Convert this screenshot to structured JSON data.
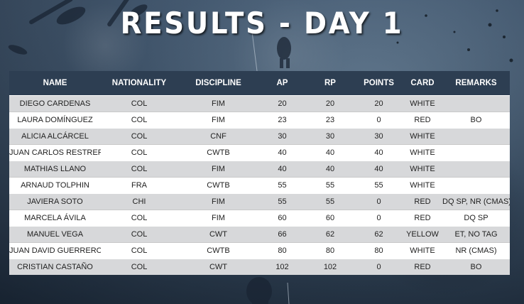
{
  "title": "RESULTS - DAY 1",
  "colors": {
    "header_bg": "#2d3e52",
    "row_odd": "#d7d8da",
    "row_even": "#ffffff"
  },
  "table": {
    "headers": [
      "NAME",
      "NATIONALITY",
      "DISCIPLINE",
      "AP",
      "RP",
      "POINTS",
      "CARD",
      "REMARKS"
    ],
    "rows": [
      [
        "DIEGO CARDENAS",
        "COL",
        "FIM",
        "20",
        "20",
        "20",
        "WHITE",
        ""
      ],
      [
        "LAURA DOMÍNGUEZ",
        "COL",
        "FIM",
        "23",
        "23",
        "0",
        "RED",
        "BO"
      ],
      [
        "ALICIA ALCÁRCEL",
        "COL",
        "CNF",
        "30",
        "30",
        "30",
        "WHITE",
        ""
      ],
      [
        "JUAN CARLOS RESTREPO",
        "COL",
        "CWTB",
        "40",
        "40",
        "40",
        "WHITE",
        ""
      ],
      [
        "MATHIAS LLANO",
        "COL",
        "FIM",
        "40",
        "40",
        "40",
        "WHITE",
        ""
      ],
      [
        "ARNAUD TOLPHIN",
        "FRA",
        "CWTB",
        "55",
        "55",
        "55",
        "WHITE",
        ""
      ],
      [
        "JAVIERA SOTO",
        "CHI",
        "FIM",
        "55",
        "55",
        "0",
        "RED",
        "DQ SP, NR (CMAS)"
      ],
      [
        "MARCELA ÁVILA",
        "COL",
        "FIM",
        "60",
        "60",
        "0",
        "RED",
        "DQ SP"
      ],
      [
        "MANUEL VEGA",
        "COL",
        "CWT",
        "66",
        "62",
        "62",
        "YELLOW",
        "ET, NO TAG"
      ],
      [
        "JUAN DAVID GUERRERO",
        "COL",
        "CWTB",
        "80",
        "80",
        "80",
        "WHITE",
        "NR (CMAS)"
      ],
      [
        "CRISTIAN CASTAÑO",
        "COL",
        "CWT",
        "102",
        "102",
        "0",
        "RED",
        "BO"
      ]
    ]
  }
}
